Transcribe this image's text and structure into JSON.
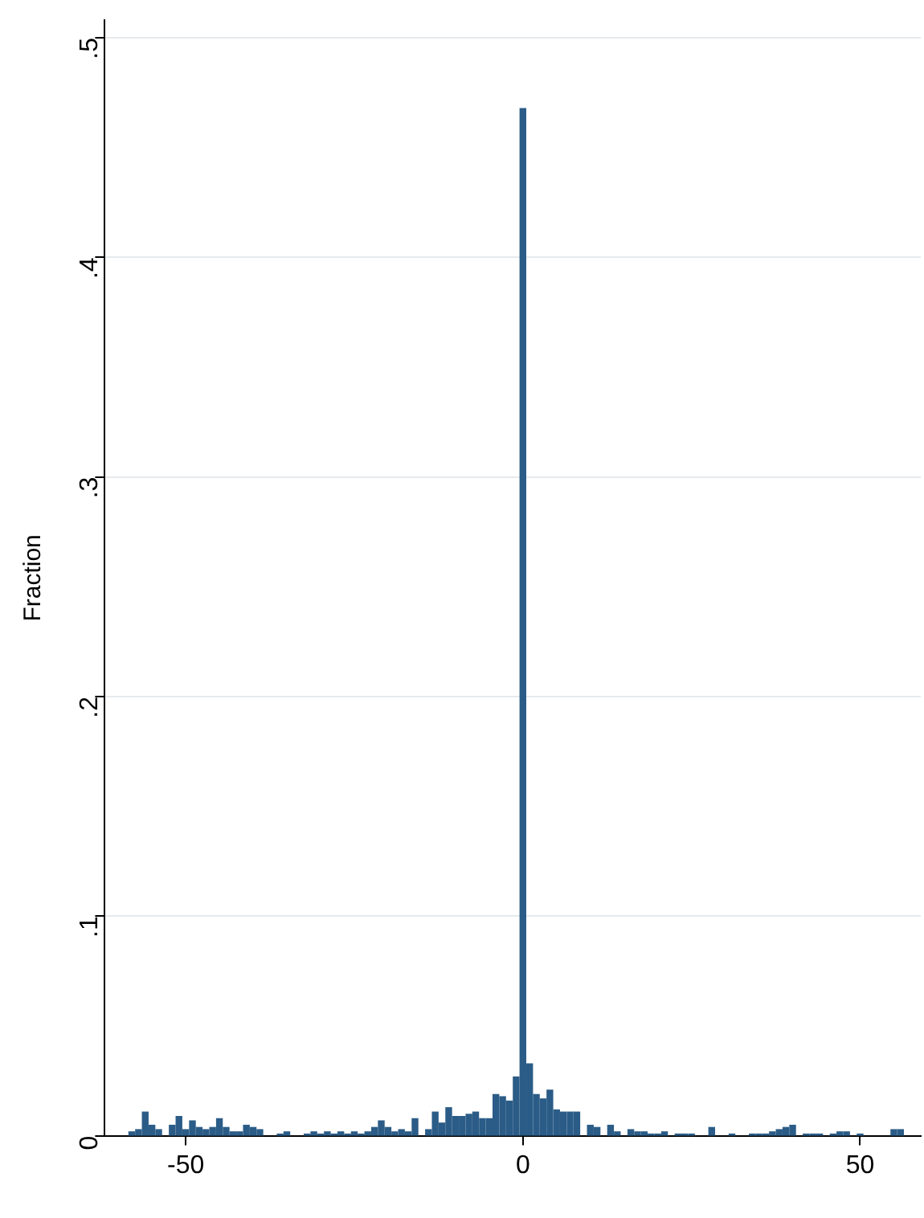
{
  "chart_data": {
    "type": "histogram",
    "ylabel": "Fraction",
    "color": "#2b5c87",
    "bins": [
      -58.5,
      -57.5,
      -56.5,
      -55.5,
      -54.5,
      -53.5,
      -52.5,
      -51.5,
      -50.5,
      -49.5,
      -48.5,
      -47.5,
      -46.5,
      -45.5,
      -44.5,
      -43.5,
      -42.5,
      -41.5,
      -40.5,
      -39.5,
      -38.5,
      -37.5,
      -36.5,
      -35.5,
      -34.5,
      -33.5,
      -32.5,
      -31.5,
      -30.5,
      -29.5,
      -28.5,
      -27.5,
      -26.5,
      -25.5,
      -24.5,
      -23.5,
      -22.5,
      -21.5,
      -20.5,
      -19.5,
      -18.5,
      -17.5,
      -16.5,
      -15.5,
      -14.5,
      -13.5,
      -12.5,
      -11.5,
      -10.5,
      -9.5,
      -8.5,
      -7.5,
      -6.5,
      -5.5,
      -4.5,
      -3.5,
      -2.5,
      -1.5,
      -0.5,
      0.5,
      1.5,
      2.5,
      3.5,
      4.5,
      5.5,
      6.5,
      7.5,
      8.5,
      9.5,
      10.5,
      11.5,
      12.5,
      13.5,
      14.5,
      15.5,
      16.5,
      17.5,
      18.5,
      19.5,
      20.5,
      21.5,
      22.5,
      23.5,
      24.5,
      25.5,
      26.5,
      27.5,
      28.5,
      29.5,
      30.5,
      31.5,
      32.5,
      33.5,
      34.5,
      35.5,
      36.5,
      37.5,
      38.5,
      39.5,
      40.5,
      41.5,
      42.5,
      43.5,
      44.5,
      45.5,
      46.5,
      47.5,
      48.5,
      49.5,
      50.5,
      51.5,
      52.5,
      53.5,
      54.5,
      55.5,
      56.5
    ],
    "values": [
      0.002,
      0.003,
      0.011,
      0.005,
      0.003,
      0,
      0.005,
      0.009,
      0.003,
      0.007,
      0.004,
      0.003,
      0.004,
      0.008,
      0.004,
      0.002,
      0.002,
      0.005,
      0.004,
      0.003,
      0,
      0,
      0.001,
      0.002,
      0,
      0,
      0.001,
      0.002,
      0.001,
      0.002,
      0.001,
      0.002,
      0.001,
      0.002,
      0.001,
      0.002,
      0.004,
      0.007,
      0.004,
      0.002,
      0.003,
      0.002,
      0.008,
      0,
      0.003,
      0.011,
      0.006,
      0.013,
      0.009,
      0.009,
      0.01,
      0.011,
      0.008,
      0.008,
      0.019,
      0.018,
      0.016,
      0.027,
      0.468,
      0.033,
      0.019,
      0.017,
      0.021,
      0.012,
      0.011,
      0.011,
      0.011,
      0,
      0.005,
      0.004,
      0,
      0.005,
      0.002,
      0,
      0.003,
      0.002,
      0.002,
      0.001,
      0.001,
      0.002,
      0,
      0.001,
      0.001,
      0.001,
      0,
      0,
      0.004,
      0,
      0,
      0.001,
      0,
      0,
      0.001,
      0.001,
      0.001,
      0.002,
      0.003,
      0.004,
      0.005,
      0,
      0.001,
      0.001,
      0.001,
      0,
      0.001,
      0.002,
      0.002,
      0,
      0.001,
      0,
      0,
      0,
      0,
      0.003,
      0.003
    ],
    "xlim": [
      -62,
      59
    ],
    "xticks": [
      -50,
      0,
      50
    ],
    "ylim": [
      0,
      0.508
    ],
    "yticks": [
      0,
      {
        "value": 0.1,
        "label": ".1"
      },
      {
        "value": 0.2,
        "label": ".2"
      },
      {
        "value": 0.3,
        "label": ".3"
      },
      {
        "value": 0.4,
        "label": ".4"
      },
      {
        "value": 0.5,
        "label": ".5"
      }
    ],
    "grid": "y"
  }
}
